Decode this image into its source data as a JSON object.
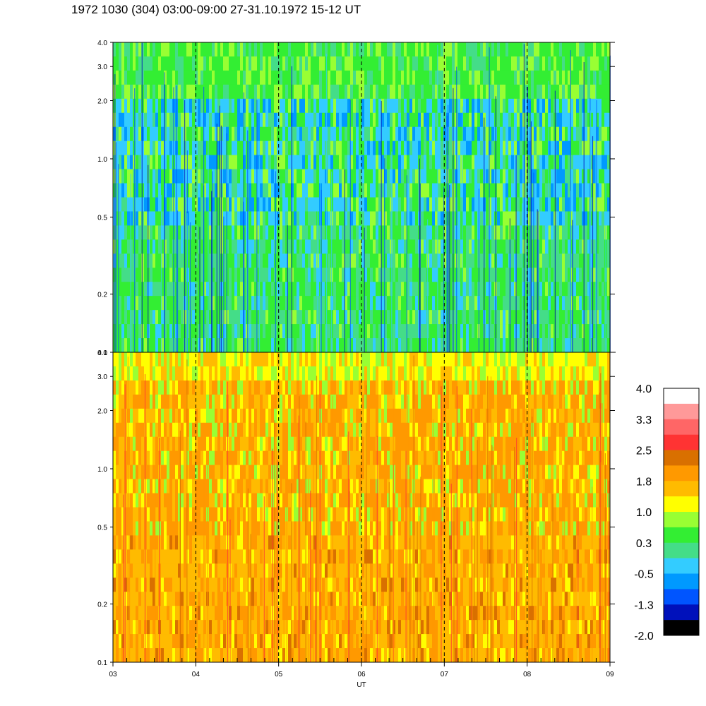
{
  "chart_data": {
    "type": "heatmap",
    "title": "1972 1030 (304) 03:00-09:00 27-31.10.1972  15-12 UT",
    "xlabel": "UT",
    "x_tick_labels": [
      "03",
      "04",
      "05",
      "06",
      "07",
      "08",
      "09"
    ],
    "x_range": [
      3,
      9
    ],
    "y_scale": "log",
    "y_range": [
      0.1,
      4.0
    ],
    "y_ticks": [
      0.1,
      0.2,
      0.5,
      1.0,
      2.0,
      3.0,
      4.0
    ],
    "y_tick_labels": [
      "0.1",
      "0.2",
      "0.5",
      "1.0",
      "2.0",
      "3.0",
      "4.0"
    ],
    "panels": [
      {
        "name": "upper",
        "dominant_levels": "-0.5 to 1.0"
      },
      {
        "name": "lower",
        "dominant_levels": "1.0 to 2.5"
      }
    ],
    "vertical_dashed_lines_at": [
      4,
      5,
      6,
      7,
      8
    ],
    "colorbar": {
      "tick_labels": [
        "4.0",
        "3.3",
        "2.5",
        "1.8",
        "1.0",
        "0.3",
        "-0.5",
        "-1.3",
        "-2.0"
      ],
      "colors": [
        "#ffffff",
        "#ff9999",
        "#ff6666",
        "#ff3333",
        "#d97000",
        "#ff9900",
        "#ffbb00",
        "#ffff00",
        "#99ff33",
        "#33ee33",
        "#44dd88",
        "#33ccff",
        "#0099ff",
        "#0055ff",
        "#0011bb",
        "#000000"
      ]
    }
  }
}
